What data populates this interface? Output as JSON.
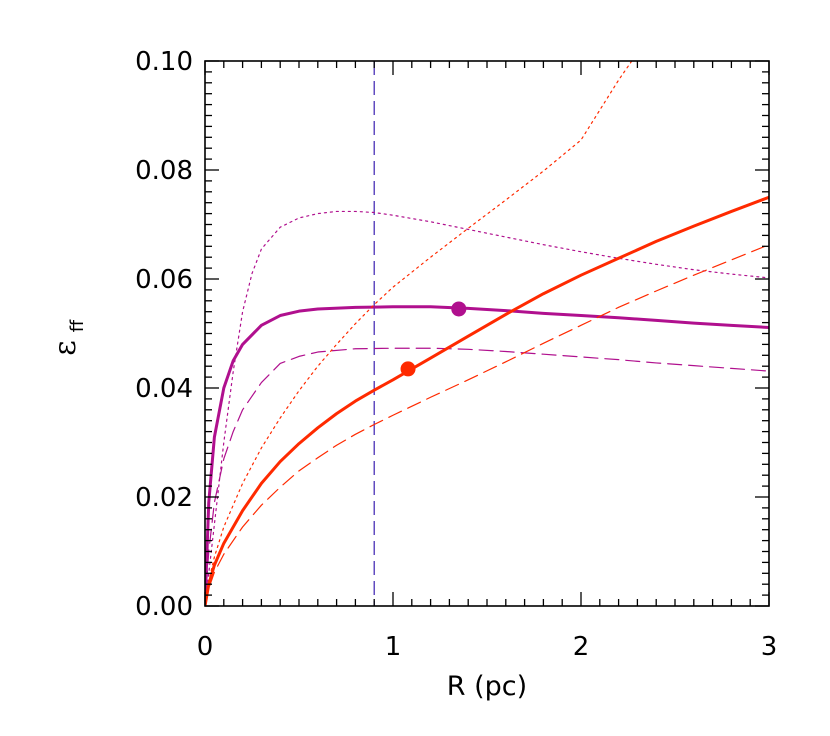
{
  "chart_data": {
    "type": "line",
    "xlabel": "R (pc)",
    "ylabel": "ε",
    "ylabel_subscript": "ff",
    "xlim": [
      0,
      3
    ],
    "ylim": [
      0,
      0.1
    ],
    "x_ticks": [
      0,
      1,
      2,
      3
    ],
    "x_tick_labels": [
      "0",
      "1",
      "2",
      "3"
    ],
    "y_ticks": [
      0,
      0.02,
      0.04,
      0.06,
      0.08,
      0.1
    ],
    "y_tick_labels": [
      "0.00",
      "0.02",
      "0.04",
      "0.06",
      "0.08",
      "0.10"
    ],
    "grid": false,
    "legend": "none",
    "vertical_line": {
      "x": 0.9,
      "color": "#3a1fb0",
      "style": "dashed"
    },
    "series": [
      {
        "color": "#b0108e",
        "style": "solid",
        "width": 3,
        "x": [
          0,
          0.02,
          0.05,
          0.1,
          0.15,
          0.2,
          0.3,
          0.4,
          0.5,
          0.6,
          0.8,
          1.0,
          1.2,
          1.4,
          1.6,
          1.8,
          2.0,
          2.2,
          2.4,
          2.6,
          2.8,
          3.0
        ],
        "y": [
          0,
          0.019,
          0.031,
          0.04,
          0.045,
          0.048,
          0.0515,
          0.0533,
          0.0541,
          0.0545,
          0.0548,
          0.0549,
          0.0549,
          0.0546,
          0.0542,
          0.0537,
          0.0533,
          0.0529,
          0.0524,
          0.0519,
          0.0515,
          0.0511
        ]
      },
      {
        "color": "#b0108e",
        "style": "dashed",
        "width": 1.2,
        "x": [
          0,
          0.02,
          0.05,
          0.1,
          0.15,
          0.2,
          0.3,
          0.4,
          0.5,
          0.6,
          0.8,
          1.0,
          1.2,
          1.4,
          1.6,
          1.8,
          2.0,
          2.2,
          2.4,
          2.6,
          2.8,
          3.0
        ],
        "y": [
          0,
          0.01,
          0.019,
          0.027,
          0.032,
          0.036,
          0.041,
          0.0445,
          0.0458,
          0.0466,
          0.0472,
          0.0473,
          0.0473,
          0.0471,
          0.0467,
          0.0462,
          0.0457,
          0.0452,
          0.0446,
          0.0441,
          0.0436,
          0.0431
        ]
      },
      {
        "color": "#b0108e",
        "style": "dotted",
        "width": 1.2,
        "x": [
          0,
          0.05,
          0.1,
          0.15,
          0.2,
          0.25,
          0.3,
          0.4,
          0.5,
          0.6,
          0.7,
          0.8,
          0.9,
          1.0,
          1.2,
          1.4,
          1.6,
          1.8,
          2.0,
          2.2,
          2.4,
          2.6,
          2.8,
          3.0
        ],
        "y": [
          0,
          0.015,
          0.03,
          0.043,
          0.054,
          0.061,
          0.0655,
          0.0695,
          0.0712,
          0.072,
          0.0724,
          0.0724,
          0.0722,
          0.0717,
          0.0705,
          0.0691,
          0.0677,
          0.0663,
          0.065,
          0.0638,
          0.0627,
          0.0617,
          0.0609,
          0.0602
        ]
      },
      {
        "color": "#ff2a00",
        "style": "solid",
        "width": 3,
        "x": [
          0,
          0.02,
          0.05,
          0.1,
          0.2,
          0.3,
          0.4,
          0.5,
          0.6,
          0.7,
          0.8,
          0.9,
          1.0,
          1.2,
          1.4,
          1.6,
          1.8,
          2.0,
          2.2,
          2.4,
          2.6,
          2.8,
          3.0
        ],
        "y": [
          0,
          0.004,
          0.0075,
          0.0115,
          0.0175,
          0.0225,
          0.0265,
          0.0298,
          0.0327,
          0.0353,
          0.0376,
          0.0396,
          0.0415,
          0.0455,
          0.0495,
          0.0535,
          0.0573,
          0.0607,
          0.0638,
          0.0669,
          0.0697,
          0.0724,
          0.075
        ]
      },
      {
        "color": "#ff2a00",
        "style": "dashed",
        "width": 1.2,
        "x": [
          0,
          0.02,
          0.05,
          0.1,
          0.2,
          0.3,
          0.4,
          0.5,
          0.6,
          0.7,
          0.8,
          0.9,
          1.0,
          1.2,
          1.4,
          1.6,
          1.8,
          2.0,
          2.2,
          2.4,
          2.6,
          2.8,
          3.0
        ],
        "y": [
          0,
          0.0032,
          0.0062,
          0.0095,
          0.0145,
          0.0185,
          0.0218,
          0.0248,
          0.0272,
          0.0295,
          0.0315,
          0.0333,
          0.035,
          0.0383,
          0.0415,
          0.0448,
          0.0482,
          0.0515,
          0.0548,
          0.0578,
          0.0607,
          0.0635,
          0.0663
        ]
      },
      {
        "color": "#ff2a00",
        "style": "dotted",
        "width": 1.2,
        "x": [
          0,
          0.02,
          0.05,
          0.1,
          0.2,
          0.3,
          0.4,
          0.5,
          0.6,
          0.7,
          0.8,
          0.9,
          1.0,
          1.2,
          1.4,
          1.6,
          1.8,
          2.0,
          2.2,
          2.27
        ],
        "y": [
          0,
          0.0045,
          0.009,
          0.0145,
          0.0225,
          0.029,
          0.0345,
          0.0395,
          0.044,
          0.048,
          0.0518,
          0.0553,
          0.0585,
          0.064,
          0.0693,
          0.0745,
          0.0798,
          0.0855,
          0.0965,
          0.1
        ]
      }
    ],
    "markers": [
      {
        "x": 1.35,
        "y": 0.0545,
        "color": "#b0108e"
      },
      {
        "x": 1.08,
        "y": 0.0435,
        "color": "#ff2a00"
      }
    ]
  }
}
